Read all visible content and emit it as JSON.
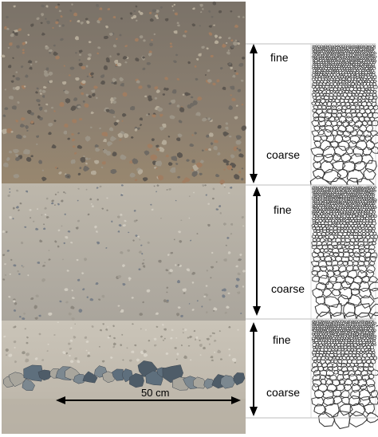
{
  "figure": {
    "photo_description_colors": {
      "upper_unit": "#8a7f72",
      "middle_unit": "#b7b2a8",
      "lower_unit": "#c8c2b6",
      "cobbles": "#5e6f7d"
    },
    "scale_bar": {
      "label": "50 cm"
    },
    "beds": [
      {
        "id": "bed-1",
        "top_label": "fine",
        "bottom_label": "coarse"
      },
      {
        "id": "bed-2",
        "top_label": "fine",
        "bottom_label": "coarse"
      },
      {
        "id": "bed-3",
        "top_label": "fine",
        "bottom_label": "coarse"
      }
    ],
    "line_color": "#000000",
    "sketch_stroke": "#333333"
  }
}
